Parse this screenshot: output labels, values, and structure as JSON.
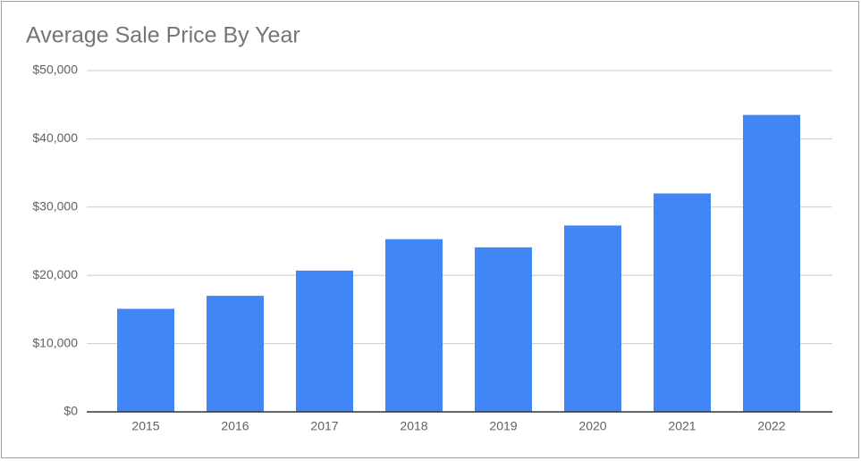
{
  "chart_data": {
    "type": "bar",
    "title": "Average Sale Price By Year",
    "categories": [
      "2015",
      "2016",
      "2017",
      "2018",
      "2019",
      "2020",
      "2021",
      "2022"
    ],
    "values": [
      15100,
      17000,
      20700,
      25300,
      24100,
      27300,
      32000,
      43500
    ],
    "color": "#4285f4",
    "ylim": [
      0,
      50000
    ],
    "yticks": [
      {
        "value": 0,
        "label": "$0"
      },
      {
        "value": 10000,
        "label": "$10,000"
      },
      {
        "value": 20000,
        "label": "$20,000"
      },
      {
        "value": 30000,
        "label": "$30,000"
      },
      {
        "value": 40000,
        "label": "$40,000"
      },
      {
        "value": 50000,
        "label": "$50,000"
      }
    ],
    "grid": true
  }
}
